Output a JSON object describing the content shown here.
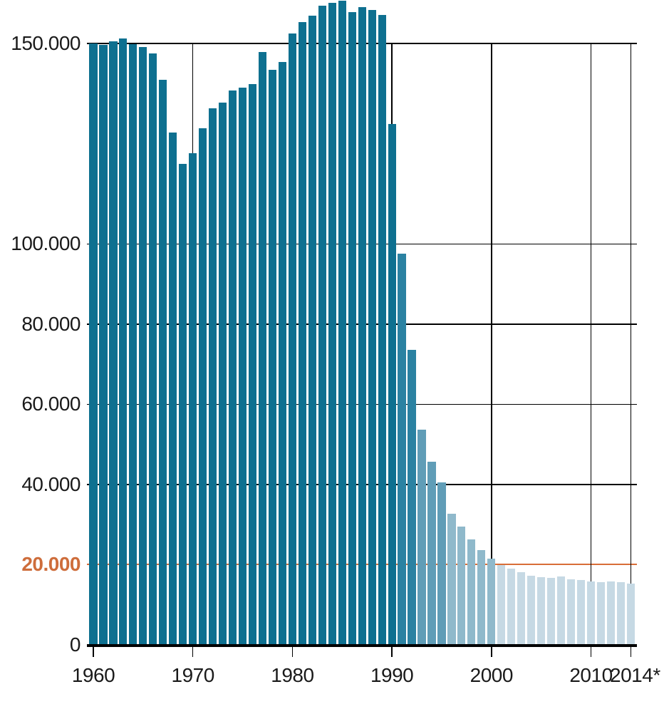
{
  "chart_data": {
    "type": "bar",
    "title": "",
    "xlabel": "",
    "ylabel": "",
    "years": [
      1960,
      1961,
      1962,
      1963,
      1964,
      1965,
      1966,
      1967,
      1968,
      1969,
      1970,
      1971,
      1972,
      1973,
      1974,
      1975,
      1976,
      1977,
      1978,
      1979,
      1980,
      1981,
      1982,
      1983,
      1984,
      1985,
      1986,
      1987,
      1988,
      1989,
      1990,
      1991,
      1992,
      1993,
      1994,
      1995,
      1996,
      1997,
      1998,
      1999,
      2000,
      2001,
      2002,
      2003,
      2004,
      2005,
      2006,
      2007,
      2008,
      2009,
      2010,
      2011,
      2012,
      2013,
      2014
    ],
    "values": [
      150000,
      149600,
      150500,
      151300,
      149900,
      149100,
      147600,
      140900,
      127800,
      119900,
      122700,
      128800,
      133800,
      135200,
      138200,
      139000,
      139800,
      147800,
      143500,
      145300,
      152500,
      155400,
      157000,
      159500,
      160100,
      160700,
      157900,
      159100,
      158400,
      157100,
      129900,
      97500,
      73500,
      53700,
      45700,
      40600,
      32700,
      29500,
      26300,
      23700,
      21500,
      19900,
      19000,
      18100,
      17200,
      16900,
      16700,
      17100,
      16400,
      16100,
      15900,
      15700,
      15900,
      15600,
      15200
    ],
    "color_steps": [
      {
        "from_year": 1960,
        "to_year": 1990,
        "color": "#0e7090"
      },
      {
        "from_year": 1991,
        "to_year": 1992,
        "color": "#2b82a2"
      },
      {
        "from_year": 1993,
        "to_year": 1995,
        "color": "#609db7"
      },
      {
        "from_year": 1996,
        "to_year": 2000,
        "color": "#8fb9cb"
      },
      {
        "from_year": 2001,
        "to_year": 2014,
        "color": "#c6d9e4"
      }
    ],
    "y_axis": {
      "range": [
        0,
        150000
      ],
      "ticks": [
        {
          "label": "150.000",
          "value": 150000,
          "highlight": false
        },
        {
          "label": "100.000",
          "value": 100000,
          "highlight": false
        },
        {
          "label": "80.000",
          "value": 80000,
          "highlight": false
        },
        {
          "label": "60.000",
          "value": 60000,
          "highlight": false
        },
        {
          "label": "40.000",
          "value": 40000,
          "highlight": false
        },
        {
          "label": "20.000",
          "value": 20000,
          "highlight": true
        },
        {
          "label": "0",
          "value": 0,
          "highlight": false
        }
      ]
    },
    "x_axis": {
      "ticks": [
        {
          "label": "1960",
          "year": 1960
        },
        {
          "label": "1970",
          "year": 1970
        },
        {
          "label": "1980",
          "year": 1980
        },
        {
          "label": "1990",
          "year": 1990
        },
        {
          "label": "2000",
          "year": 2000
        },
        {
          "label": "2010",
          "year": 2010
        },
        {
          "label": "2014*",
          "year": 2014
        }
      ]
    },
    "gridlines": {
      "horizontal_values": [
        150000,
        100000,
        80000,
        60000,
        40000
      ],
      "vertical_years": [
        1970,
        1980,
        1990,
        2000,
        2010,
        2014
      ],
      "grid_color": "#000000"
    },
    "reference_line": {
      "value": 20000,
      "color": "#d86e38",
      "label": "20.000",
      "label_color": "#ce6d3b"
    },
    "legend": null
  },
  "colors": {
    "background": "#ffffff",
    "bar_dark_teal": "#0e7090",
    "bar_lightest_blue": "#c6d9e4",
    "accent_orange": "#d86e38",
    "text": "#1a1a1a",
    "axis": "#000000"
  }
}
